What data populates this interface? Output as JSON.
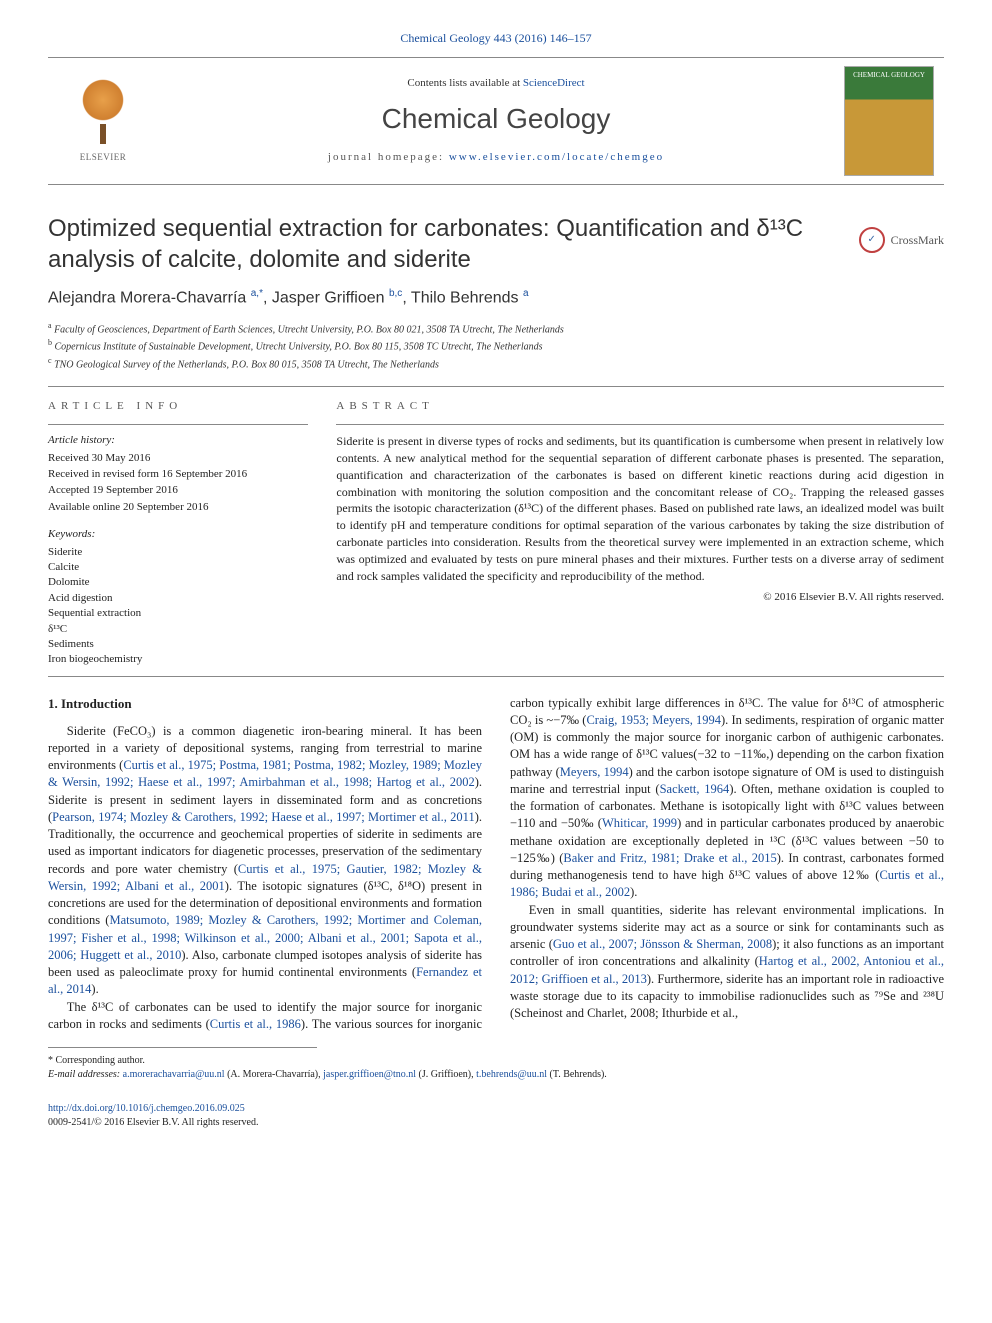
{
  "header": {
    "citation": "Chemical Geology 443 (2016) 146–157",
    "contents_text": "Contents lists available at ",
    "contents_link": "ScienceDirect",
    "journal_name": "Chemical Geology",
    "homepage_label": "journal homepage: ",
    "homepage_url": "www.elsevier.com/locate/chemgeo",
    "publisher": "ELSEVIER",
    "cover_label": "CHEMICAL GEOLOGY"
  },
  "crossmark": {
    "label": "CrossMark"
  },
  "article": {
    "title": "Optimized sequential extraction for carbonates: Quantification and δ¹³C analysis of calcite, dolomite and siderite",
    "authors_html": "Alejandra Morera-Chavarría <sup>a,*</sup>, Jasper Griffioen <sup>b,c</sup>, Thilo Behrends <sup>a</sup>",
    "affiliations": [
      {
        "sup": "a",
        "text": "Faculty of Geosciences, Department of Earth Sciences, Utrecht University, P.O. Box 80 021, 3508 TA Utrecht, The Netherlands"
      },
      {
        "sup": "b",
        "text": "Copernicus Institute of Sustainable Development, Utrecht University, P.O. Box 80 115, 3508 TC Utrecht, The Netherlands"
      },
      {
        "sup": "c",
        "text": "TNO Geological Survey of the Netherlands, P.O. Box 80 015, 3508 TA Utrecht, The Netherlands"
      }
    ]
  },
  "article_info": {
    "heading": "ARTICLE INFO",
    "history_label": "Article history:",
    "history": [
      "Received 30 May 2016",
      "Received in revised form 16 September 2016",
      "Accepted 19 September 2016",
      "Available online 20 September 2016"
    ],
    "keywords_label": "Keywords:",
    "keywords": [
      "Siderite",
      "Calcite",
      "Dolomite",
      "Acid digestion",
      "Sequential extraction",
      "δ¹³C",
      "Sediments",
      "Iron biogeochemistry"
    ]
  },
  "abstract": {
    "heading": "ABSTRACT",
    "text": "Siderite is present in diverse types of rocks and sediments, but its quantification is cumbersome when present in relatively low contents. A new analytical method for the sequential separation of different carbonate phases is presented. The separation, quantification and characterization of the carbonates is based on different kinetic reactions during acid digestion in combination with monitoring the solution composition and the concomitant release of CO₂. Trapping the released gasses permits the isotopic characterization (δ¹³C) of the different phases. Based on published rate laws, an idealized model was built to identify pH and temperature conditions for optimal separation of the various carbonates by taking the size distribution of carbonate particles into consideration. Results from the theoretical survey were implemented in an extraction scheme, which was optimized and evaluated by tests on pure mineral phases and their mixtures. Further tests on a diverse array of sediment and rock samples validated the specificity and reproducibility of the method.",
    "copyright": "© 2016 Elsevier B.V. All rights reserved."
  },
  "body": {
    "heading": "1. Introduction",
    "p1": "Siderite (FeCO₃) is a common diagenetic iron-bearing mineral. It has been reported in a variety of depositional systems, ranging from terrestrial to marine environments (Curtis et al., 1975; Postma, 1981; Postma, 1982; Mozley, 1989; Mozley & Wersin, 1992; Haese et al., 1997; Amirbahman et al., 1998; Hartog et al., 2002). Siderite is present in sediment layers in disseminated form and as concretions (Pearson, 1974; Mozley & Carothers, 1992; Haese et al., 1997; Mortimer et al., 2011). Traditionally, the occurrence and geochemical properties of siderite in sediments are used as important indicators for diagenetic processes, preservation of the sedimentary records and pore water chemistry (Curtis et al., 1975; Gautier, 1982; Mozley & Wersin, 1992; Albani et al., 2001). The isotopic signatures (δ¹³C, δ¹⁸O) present in concretions are used for the determination of depositional environments and formation conditions (Matsumoto, 1989; Mozley & Carothers, 1992; Mortimer and Coleman, 1997; Fisher et al., 1998; Wilkinson et al., 2000; Albani et al., 2001; Sapota et al., 2006; Huggett et al., 2010). Also, carbonate clumped isotopes analysis of siderite has been used as paleoclimate proxy for humid continental environments (Fernandez et al., 2014).",
    "p2": "The δ¹³C of carbonates can be used to identify the major source for inorganic carbon in rocks and sediments (Curtis et al., 1986). The various sources for inorganic carbon typically exhibit large differences in δ¹³C. The value for δ¹³C of atmospheric CO₂ is ~−7‰ (Craig, 1953; Meyers, 1994). In sediments, respiration of organic matter (OM) is commonly the major source for inorganic carbon of authigenic carbonates. OM has a wide range of δ¹³C values(−32 to −11‰,) depending on the carbon fixation pathway (Meyers, 1994) and the carbon isotope signature of OM is used to distinguish marine and terrestrial input (Sackett, 1964). Often, methane oxidation is coupled to the formation of carbonates. Methane is isotopically light with δ¹³C values between −110 and −50‰ (Whiticar, 1999) and in particular carbonates produced by anaerobic methane oxidation are exceptionally depleted in ¹³C (δ¹³C values between −50 to −125‰) (Baker and Fritz, 1981; Drake et al., 2015). In contrast, carbonates formed during methanogenesis tend to have high δ¹³C values of above 12‰ (Curtis et al., 1986; Budai et al., 2002).",
    "p3": "Even in small quantities, siderite has relevant environmental implications. In groundwater systems siderite may act as a source or sink for contaminants such as arsenic (Guo et al., 2007; Jönsson & Sherman, 2008); it also functions as an important controller of iron concentrations and alkalinity (Hartog et al., 2002, Antoniou et al., 2012; Griffioen et al., 2013). Furthermore, siderite has an important role in radioactive waste storage due to its capacity to immobilise radionuclides such as ⁷⁹Se and ²³⁸U (Scheinost and Charlet, 2008; Ithurbide et al.,"
  },
  "footnotes": {
    "corresponding": "* Corresponding author.",
    "email_label": "E-mail addresses: ",
    "emails": [
      {
        "addr": "a.morerachavarria@uu.nl",
        "who": "(A. Morera-Chavarría)"
      },
      {
        "addr": "jasper.griffioen@tno.nl",
        "who": "(J. Griffioen)"
      },
      {
        "addr": "t.behrends@uu.nl",
        "who": "(T. Behrends)"
      }
    ]
  },
  "footer": {
    "doi": "http://dx.doi.org/10.1016/j.chemgeo.2016.09.025",
    "issn_copyright": "0009-2541/© 2016 Elsevier B.V. All rights reserved."
  },
  "colors": {
    "link": "#1a4f9c",
    "text": "#222222",
    "rule": "#888888"
  }
}
